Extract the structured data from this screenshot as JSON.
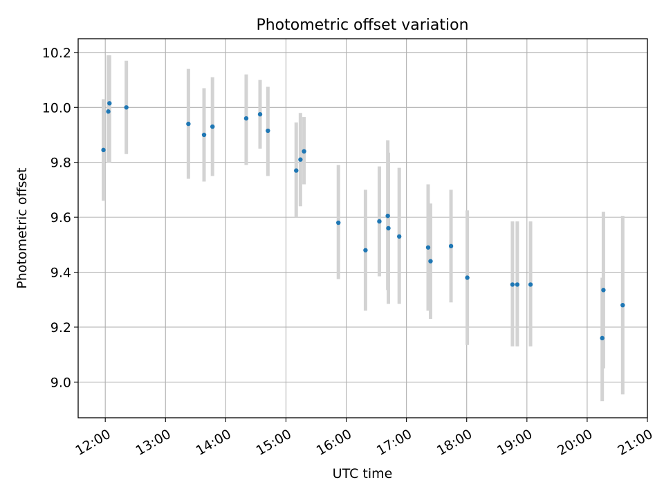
{
  "chart_data": {
    "type": "scatter",
    "title": "Photometric offset variation",
    "xlabel": "UTC time",
    "ylabel": "Photometric offset",
    "x_unit": "UTC hours",
    "xlim": [
      11.55,
      21.0
    ],
    "ylim": [
      8.87,
      10.25
    ],
    "x_ticks": [
      12,
      13,
      14,
      15,
      16,
      17,
      18,
      19,
      20,
      21
    ],
    "x_tick_labels": [
      "12:00",
      "13:00",
      "14:00",
      "15:00",
      "16:00",
      "17:00",
      "18:00",
      "19:00",
      "20:00",
      "21:00"
    ],
    "y_ticks": [
      9.0,
      9.2,
      9.4,
      9.6,
      9.8,
      10.0,
      10.2
    ],
    "y_tick_labels": [
      "9.0",
      "9.2",
      "9.4",
      "9.6",
      "9.8",
      "10.0",
      "10.2"
    ],
    "grid": true,
    "marker_color": "#1f77b4",
    "errorbar_color": "#d3d3d3",
    "points": [
      {
        "x": 11.97,
        "y": 9.845,
        "lo": 9.66,
        "hi": 10.03
      },
      {
        "x": 12.05,
        "y": 9.985,
        "lo": 9.8,
        "hi": 10.19
      },
      {
        "x": 12.07,
        "y": 10.015,
        "lo": 9.8,
        "hi": 10.19
      },
      {
        "x": 12.35,
        "y": 10.0,
        "lo": 9.83,
        "hi": 10.17
      },
      {
        "x": 13.38,
        "y": 9.94,
        "lo": 9.74,
        "hi": 10.14
      },
      {
        "x": 13.64,
        "y": 9.9,
        "lo": 9.73,
        "hi": 10.07
      },
      {
        "x": 13.78,
        "y": 9.93,
        "lo": 9.75,
        "hi": 10.11
      },
      {
        "x": 14.34,
        "y": 9.96,
        "lo": 9.79,
        "hi": 10.12
      },
      {
        "x": 14.57,
        "y": 9.975,
        "lo": 9.85,
        "hi": 10.1
      },
      {
        "x": 14.7,
        "y": 9.915,
        "lo": 9.75,
        "hi": 10.075
      },
      {
        "x": 15.17,
        "y": 9.77,
        "lo": 9.6,
        "hi": 9.945
      },
      {
        "x": 15.24,
        "y": 9.81,
        "lo": 9.64,
        "hi": 9.98
      },
      {
        "x": 15.3,
        "y": 9.84,
        "lo": 9.72,
        "hi": 9.965
      },
      {
        "x": 15.87,
        "y": 9.58,
        "lo": 9.375,
        "hi": 9.79
      },
      {
        "x": 16.32,
        "y": 9.48,
        "lo": 9.26,
        "hi": 9.7
      },
      {
        "x": 16.55,
        "y": 9.585,
        "lo": 9.385,
        "hi": 9.785
      },
      {
        "x": 16.69,
        "y": 9.605,
        "lo": 9.335,
        "hi": 9.88
      },
      {
        "x": 16.7,
        "y": 9.56,
        "lo": 9.285,
        "hi": 9.835
      },
      {
        "x": 16.88,
        "y": 9.53,
        "lo": 9.285,
        "hi": 9.78
      },
      {
        "x": 17.36,
        "y": 9.49,
        "lo": 9.26,
        "hi": 9.72
      },
      {
        "x": 17.4,
        "y": 9.44,
        "lo": 9.23,
        "hi": 9.65
      },
      {
        "x": 17.74,
        "y": 9.495,
        "lo": 9.29,
        "hi": 9.7
      },
      {
        "x": 18.01,
        "y": 9.38,
        "lo": 9.135,
        "hi": 9.625
      },
      {
        "x": 18.76,
        "y": 9.355,
        "lo": 9.13,
        "hi": 9.585
      },
      {
        "x": 18.84,
        "y": 9.355,
        "lo": 9.13,
        "hi": 9.585
      },
      {
        "x": 19.06,
        "y": 9.355,
        "lo": 9.13,
        "hi": 9.585
      },
      {
        "x": 20.25,
        "y": 9.16,
        "lo": 8.93,
        "hi": 9.38
      },
      {
        "x": 20.27,
        "y": 9.335,
        "lo": 9.05,
        "hi": 9.62
      },
      {
        "x": 20.59,
        "y": 9.28,
        "lo": 8.955,
        "hi": 9.605
      }
    ]
  }
}
